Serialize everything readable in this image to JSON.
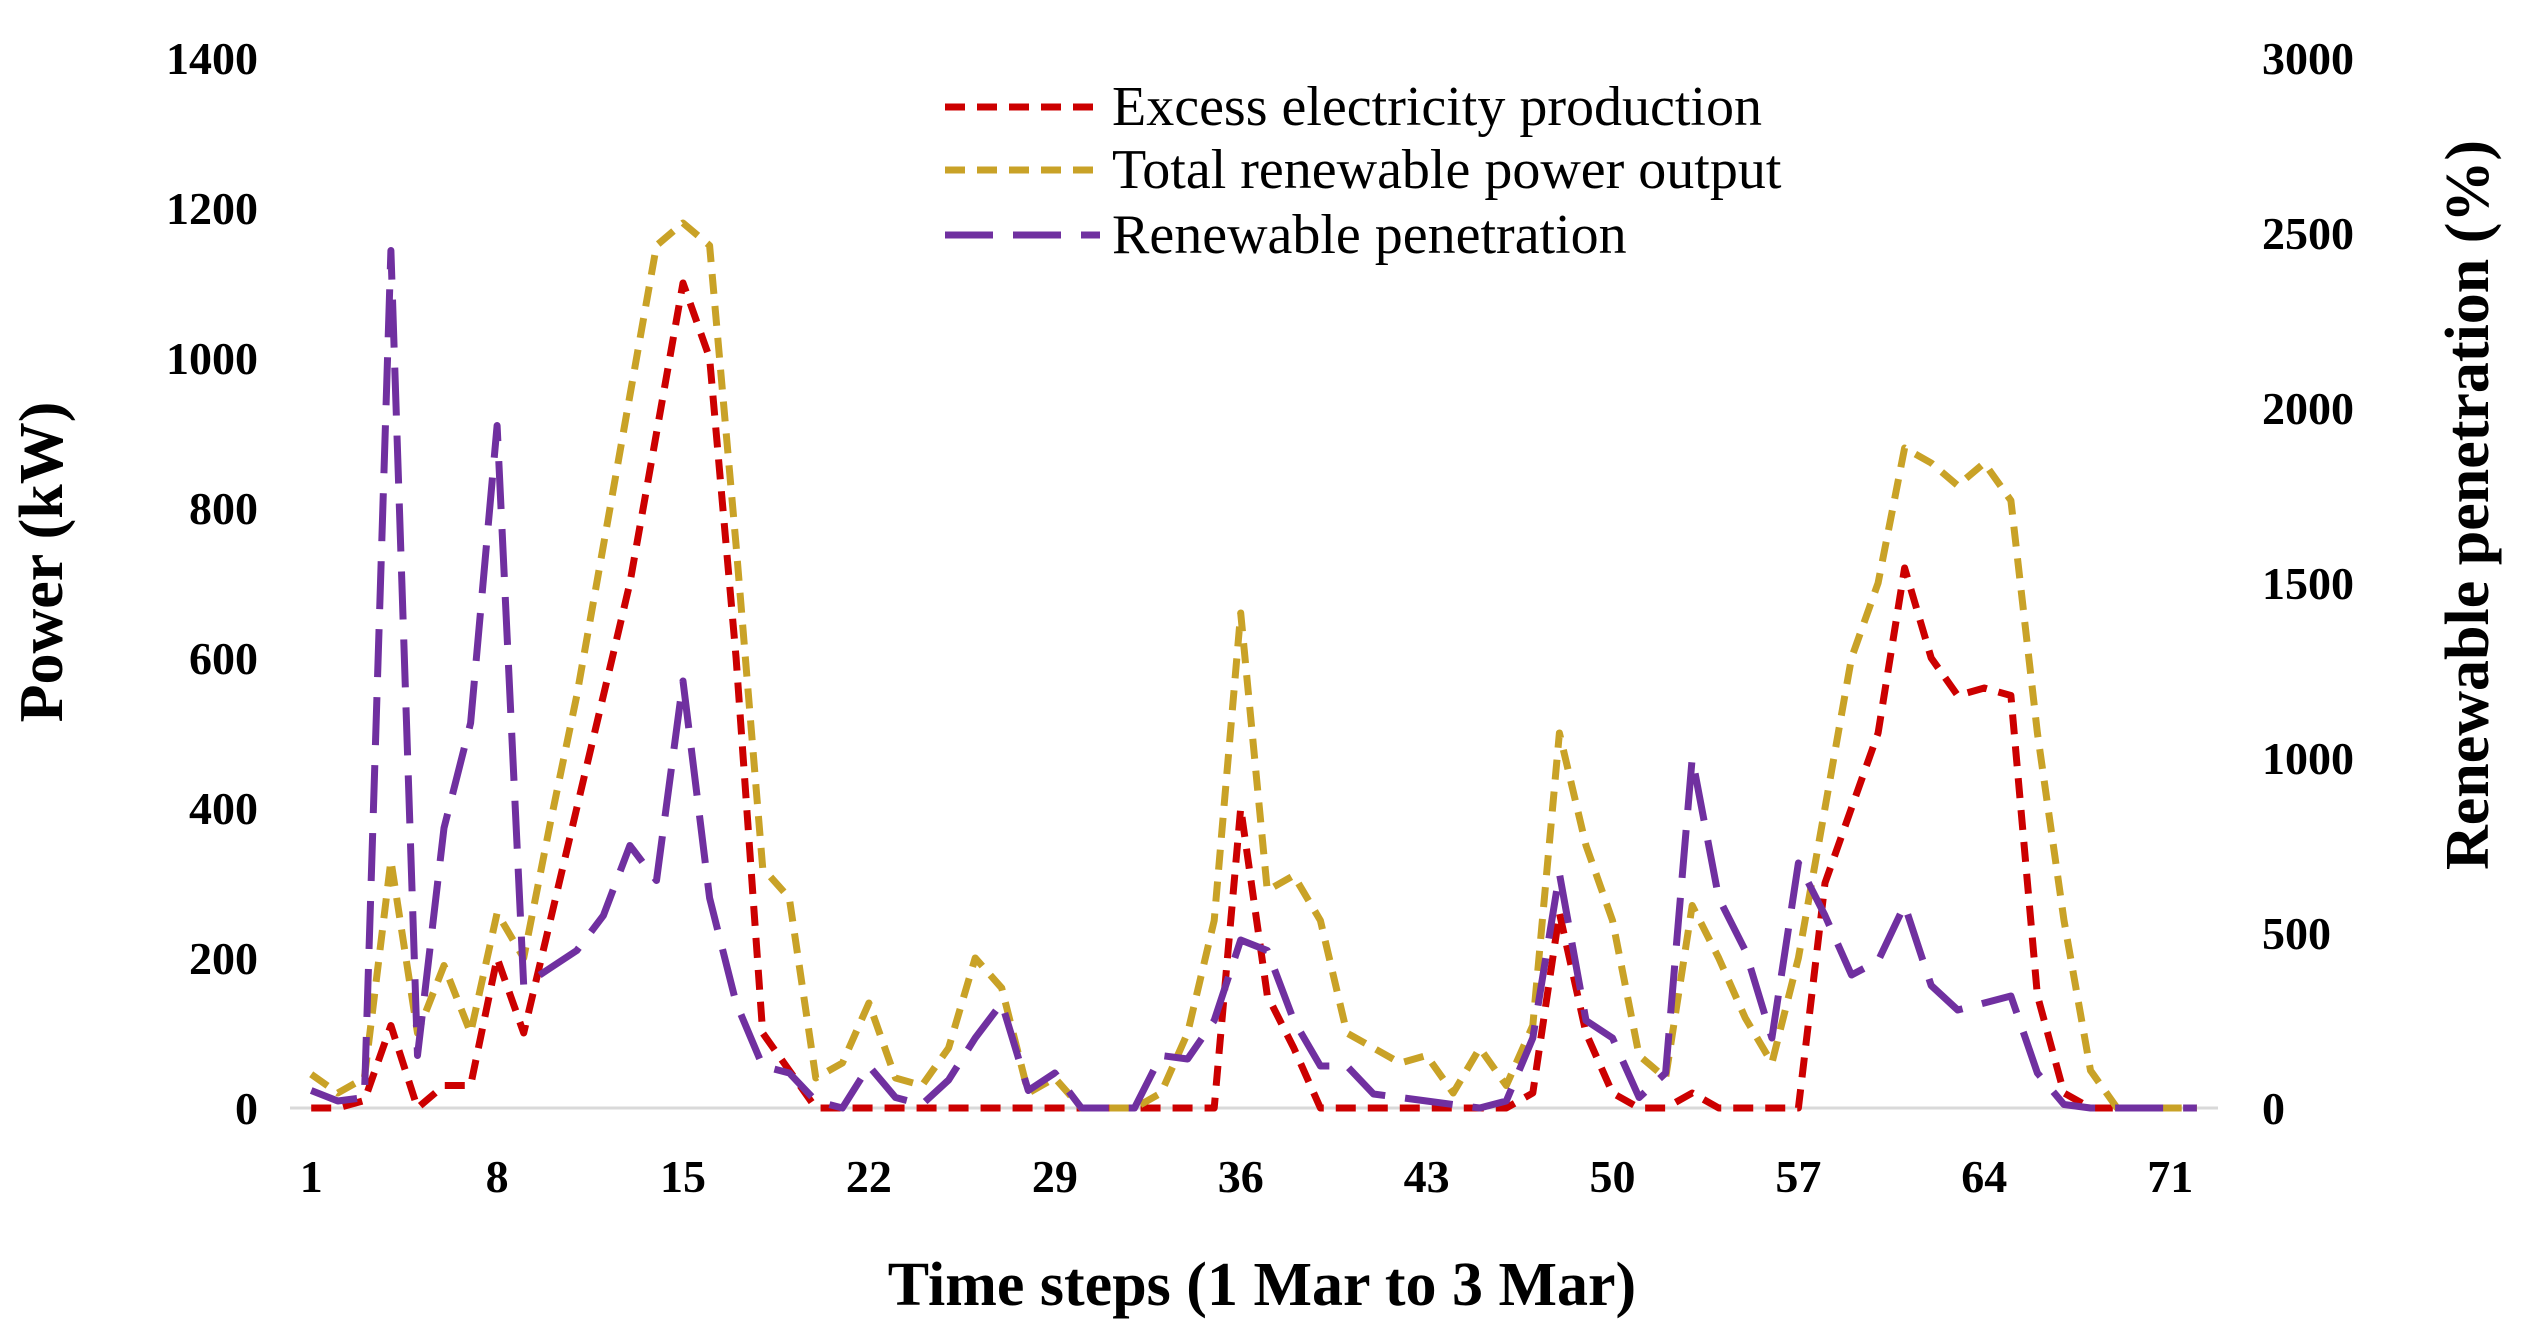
{
  "chart_data": {
    "type": "line",
    "xlabel": "Time steps (1 Mar to 3 Mar)",
    "ylabel": "Power (kW)",
    "ylabel_right": "Renewable penetration (%)",
    "x": [
      1,
      2,
      3,
      4,
      5,
      6,
      7,
      8,
      9,
      10,
      11,
      12,
      13,
      14,
      15,
      16,
      17,
      18,
      19,
      20,
      21,
      22,
      23,
      24,
      25,
      26,
      27,
      28,
      29,
      30,
      31,
      32,
      33,
      34,
      35,
      36,
      37,
      38,
      39,
      40,
      41,
      42,
      43,
      44,
      45,
      46,
      47,
      48,
      49,
      50,
      51,
      52,
      53,
      54,
      55,
      56,
      57,
      58,
      59,
      60,
      61,
      62,
      63,
      64,
      65,
      66,
      67,
      68,
      69,
      70,
      71,
      72
    ],
    "x_ticks": [
      1,
      8,
      15,
      22,
      29,
      36,
      43,
      50,
      57,
      64,
      71
    ],
    "xlim": [
      0.2,
      72.8
    ],
    "ylim": [
      0,
      1400
    ],
    "y_ticks": [
      0,
      200,
      400,
      600,
      800,
      1000,
      1200,
      1400
    ],
    "y2lim": [
      0,
      3000
    ],
    "y2_ticks": [
      0,
      500,
      1000,
      1500,
      2000,
      2500,
      3000
    ],
    "grid": false,
    "legend_position": "top-center",
    "series": [
      {
        "name": "Excess electricity production",
        "axis": "left",
        "color": "#cc0000",
        "dash": "short",
        "values": [
          0,
          0,
          10,
          110,
          0,
          30,
          30,
          200,
          100,
          250,
          400,
          550,
          700,
          900,
          1100,
          1000,
          600,
          100,
          50,
          0,
          0,
          0,
          0,
          0,
          0,
          0,
          0,
          0,
          0,
          0,
          0,
          0,
          0,
          0,
          0,
          400,
          150,
          80,
          0,
          0,
          0,
          0,
          0,
          0,
          0,
          0,
          20,
          260,
          100,
          20,
          0,
          0,
          20,
          0,
          0,
          0,
          0,
          300,
          400,
          500,
          720,
          600,
          550,
          560,
          550,
          150,
          20,
          0,
          0,
          0,
          0,
          0
        ]
      },
      {
        "name": "Total renewable power output",
        "axis": "left",
        "color": "#c9a227",
        "dash": "short",
        "values": [
          45,
          20,
          40,
          330,
          100,
          190,
          100,
          260,
          200,
          380,
          550,
          750,
          950,
          1150,
          1180,
          1150,
          750,
          320,
          280,
          40,
          60,
          140,
          40,
          30,
          80,
          200,
          160,
          20,
          40,
          0,
          0,
          0,
          20,
          100,
          250,
          660,
          290,
          310,
          250,
          100,
          80,
          60,
          70,
          20,
          80,
          30,
          110,
          500,
          350,
          250,
          70,
          40,
          270,
          200,
          120,
          60,
          200,
          400,
          600,
          700,
          880,
          860,
          830,
          860,
          810,
          500,
          250,
          50,
          0,
          0,
          0,
          0
        ]
      },
      {
        "name": "Renewable penetration",
        "axis": "right",
        "color": "#7030a0",
        "dash": "long",
        "values": [
          50,
          20,
          30,
          2450,
          150,
          800,
          1100,
          1950,
          350,
          400,
          450,
          550,
          750,
          650,
          1220,
          600,
          300,
          120,
          100,
          20,
          0,
          120,
          30,
          10,
          80,
          200,
          300,
          50,
          100,
          0,
          0,
          0,
          150,
          140,
          250,
          480,
          450,
          250,
          120,
          120,
          40,
          30,
          20,
          10,
          0,
          20,
          200,
          670,
          250,
          200,
          30,
          100,
          1000,
          600,
          450,
          200,
          700,
          550,
          380,
          420,
          580,
          350,
          280,
          300,
          320,
          100,
          10,
          0,
          0,
          0,
          0,
          0
        ]
      }
    ]
  }
}
